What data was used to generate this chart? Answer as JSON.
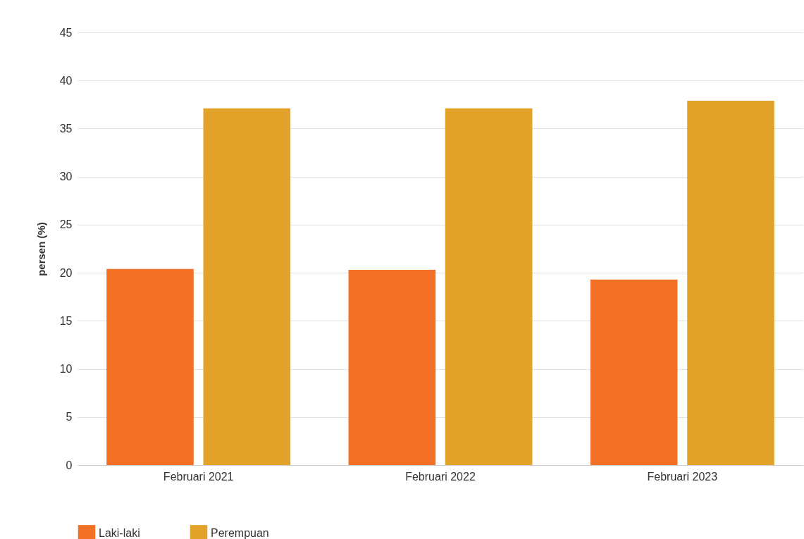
{
  "chart_data": {
    "type": "bar",
    "ylabel": "persen (%)",
    "categories": [
      "Februari 2021",
      "Februari 2022",
      "Februari 2023"
    ],
    "series": [
      {
        "name": "Laki-laki",
        "color": "#f27127",
        "values": [
          20.4,
          20.3,
          19.3
        ]
      },
      {
        "name": "Perempuan",
        "color": "#e3a22a",
        "values": [
          37.1,
          37.1,
          37.9
        ]
      }
    ],
    "ylim": [
      0,
      45
    ],
    "yticks": [
      0,
      5,
      10,
      15,
      20,
      25,
      30,
      35,
      40,
      45
    ],
    "grid": "y",
    "legend": "bottom"
  }
}
